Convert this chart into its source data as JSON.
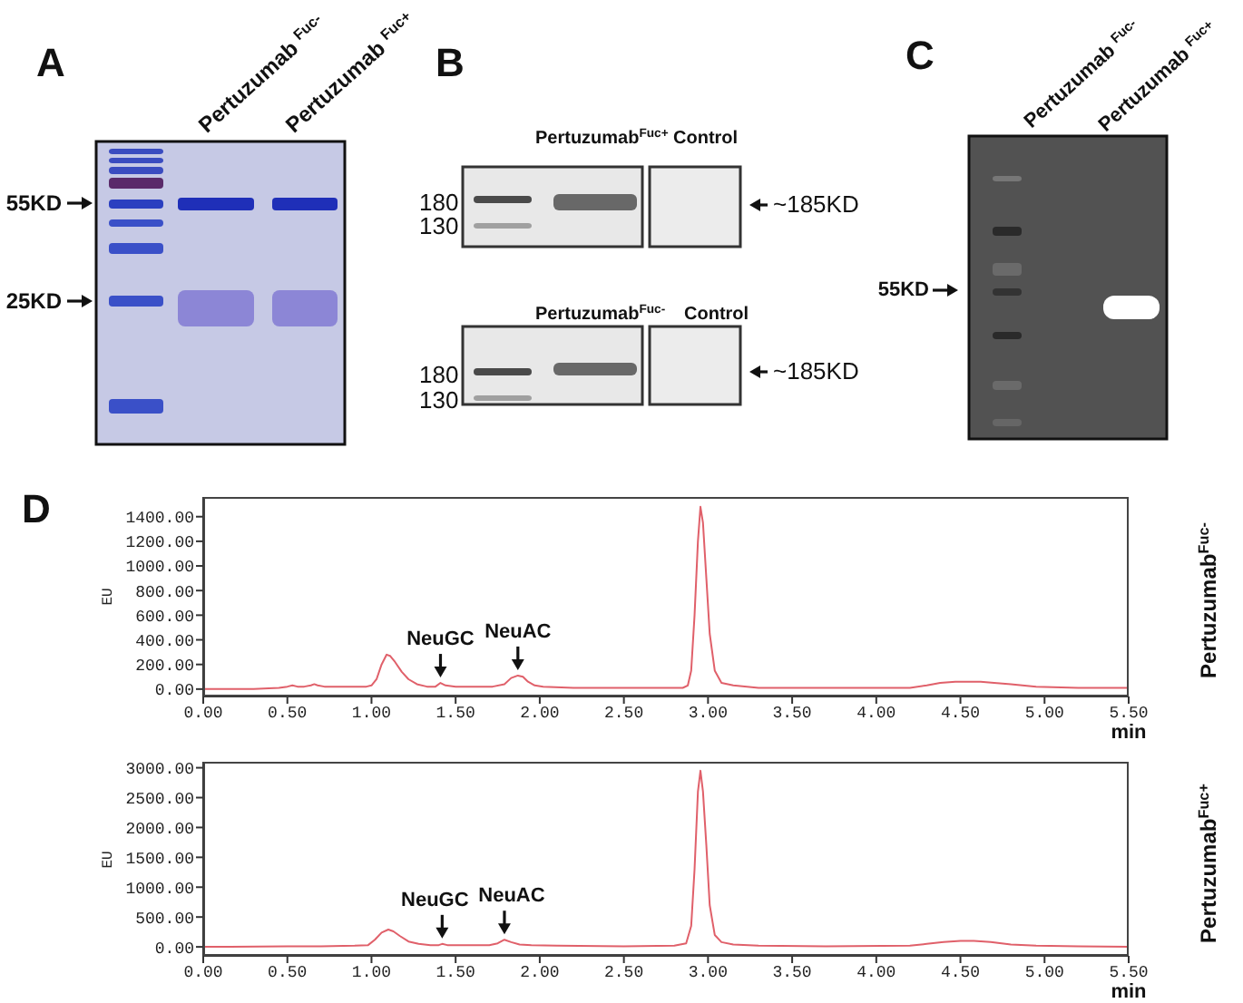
{
  "chart_data": [
    {
      "type": "other",
      "title": "A",
      "annotations": [
        "Pertuzumab $^{Fuc-}$",
        "Pertuzumab $^{Fuc+}$",
        "55KD",
        "25KD"
      ]
    },
    {
      "type": "other",
      "title": "B",
      "annotations": [
        "Pertuzumab$^{Fuc+}$",
        "Control",
        "180",
        "130",
        "~185KD",
        "Pertuzumab$^{Fuc-}$",
        "Control",
        "180",
        "130",
        "~185KD"
      ]
    },
    {
      "type": "other",
      "title": "C",
      "annotations": [
        "Pertuzumab $^{Fuc-}$",
        "Pertuzumab $^{Fuc+}$",
        "55KD"
      ]
    },
    {
      "type": "line",
      "title": "D",
      "xlabel": "min",
      "ylabel": "EU",
      "x": [
        0,
        0.3,
        0.45,
        0.5,
        0.53,
        0.56,
        0.6,
        0.64,
        0.66,
        0.68,
        0.72,
        0.8,
        0.9,
        0.97,
        1.0,
        1.03,
        1.06,
        1.09,
        1.11,
        1.14,
        1.18,
        1.22,
        1.27,
        1.33,
        1.38,
        1.41,
        1.44,
        1.5,
        1.6,
        1.72,
        1.79,
        1.83,
        1.87,
        1.9,
        1.93,
        1.97,
        2.02,
        2.2,
        2.5,
        2.75,
        2.85,
        2.88,
        2.9,
        2.92,
        2.94,
        2.955,
        2.97,
        2.99,
        3.01,
        3.04,
        3.08,
        3.15,
        3.3,
        3.6,
        4.0,
        4.2,
        4.3,
        4.38,
        4.47,
        4.55,
        4.62,
        4.7,
        4.8,
        4.95,
        5.2,
        5.5
      ],
      "series": [
        {
          "color": "#e0606a",
          "values": [
            0,
            0,
            10,
            20,
            30,
            20,
            20,
            30,
            40,
            30,
            20,
            20,
            20,
            20,
            30,
            80,
            200,
            280,
            270,
            220,
            140,
            80,
            40,
            20,
            20,
            50,
            30,
            20,
            20,
            20,
            40,
            90,
            110,
            100,
            60,
            30,
            20,
            10,
            10,
            10,
            10,
            30,
            150,
            600,
            1200,
            1480,
            1350,
            900,
            450,
            150,
            50,
            30,
            10,
            10,
            10,
            10,
            30,
            50,
            60,
            60,
            60,
            50,
            40,
            20,
            10,
            10
          ]
        }
      ],
      "xlim": [
        0,
        5.5
      ],
      "xticks": [
        {
          "value": 0,
          "label": "0.00"
        },
        {
          "value": 0.5,
          "label": "0.50"
        },
        {
          "value": 1,
          "label": "1.00"
        },
        {
          "value": 1.5,
          "label": "1.50"
        },
        {
          "value": 2,
          "label": "2.00"
        },
        {
          "value": 2.5,
          "label": "2.50"
        },
        {
          "value": 3,
          "label": "3.00"
        },
        {
          "value": 3.5,
          "label": "3.50"
        },
        {
          "value": 4,
          "label": "4.00"
        },
        {
          "value": 4.5,
          "label": "4.50"
        },
        {
          "value": 5,
          "label": "5.00"
        },
        {
          "value": 5.5,
          "label": "5.50"
        }
      ],
      "ylim": [
        -60,
        1560
      ],
      "yticks": [
        {
          "value": 0,
          "label": "0.00"
        },
        {
          "value": 200,
          "label": "200.00"
        },
        {
          "value": 400,
          "label": "400.00"
        },
        {
          "value": 600,
          "label": "600.00"
        },
        {
          "value": 800,
          "label": "800.00"
        },
        {
          "value": 1000,
          "label": "1000.00"
        },
        {
          "value": 1200,
          "label": "1200.00"
        },
        {
          "value": 1400,
          "label": "1400.00"
        }
      ],
      "annotations": [
        {
          "text": "NeuGC",
          "x": 1.41,
          "y": 50
        },
        {
          "text": "NeuAC",
          "x": 1.87,
          "y": 110
        },
        "Pertuzumab$^{Fuc-}$"
      ]
    },
    {
      "type": "line",
      "xlabel": "min",
      "ylabel": "EU",
      "x": [
        0,
        0.5,
        0.7,
        0.9,
        0.98,
        1.02,
        1.06,
        1.1,
        1.13,
        1.17,
        1.22,
        1.28,
        1.35,
        1.4,
        1.42,
        1.45,
        1.55,
        1.7,
        1.75,
        1.79,
        1.83,
        1.88,
        1.95,
        2.1,
        2.5,
        2.8,
        2.87,
        2.9,
        2.92,
        2.94,
        2.955,
        2.97,
        2.99,
        3.01,
        3.04,
        3.08,
        3.15,
        3.3,
        3.7,
        4.2,
        4.3,
        4.4,
        4.5,
        4.58,
        4.68,
        4.8,
        4.95,
        5.2,
        5.5
      ],
      "series": [
        {
          "color": "#e0606a",
          "values": [
            0,
            10,
            10,
            20,
            30,
            120,
            240,
            290,
            260,
            180,
            90,
            50,
            30,
            30,
            50,
            30,
            30,
            30,
            60,
            120,
            80,
            40,
            30,
            20,
            10,
            20,
            60,
            350,
            1300,
            2600,
            2950,
            2600,
            1700,
            700,
            200,
            80,
            40,
            20,
            10,
            20,
            50,
            80,
            100,
            100,
            80,
            40,
            20,
            10,
            0
          ]
        }
      ],
      "xlim": [
        0,
        5.5
      ],
      "xticks": [
        {
          "value": 0,
          "label": "0.00"
        },
        {
          "value": 0.5,
          "label": "0.50"
        },
        {
          "value": 1,
          "label": "1.00"
        },
        {
          "value": 1.5,
          "label": "1.50"
        },
        {
          "value": 2,
          "label": "2.00"
        },
        {
          "value": 2.5,
          "label": "2.50"
        },
        {
          "value": 3,
          "label": "3.00"
        },
        {
          "value": 3.5,
          "label": "3.50"
        },
        {
          "value": 4,
          "label": "4.00"
        },
        {
          "value": 4.5,
          "label": "4.50"
        },
        {
          "value": 5,
          "label": "5.00"
        },
        {
          "value": 5.5,
          "label": "5.50"
        }
      ],
      "ylim": [
        -150,
        3100
      ],
      "yticks": [
        {
          "value": 0,
          "label": "0.00"
        },
        {
          "value": 500,
          "label": "500.00"
        },
        {
          "value": 1000,
          "label": "1000.00"
        },
        {
          "value": 1500,
          "label": "1500.00"
        },
        {
          "value": 2000,
          "label": "2000.00"
        },
        {
          "value": 2500,
          "label": "2500.00"
        },
        {
          "value": 3000,
          "label": "3000.00"
        }
      ],
      "annotations": [
        {
          "text": "NeuGC",
          "x": 1.42,
          "y": 50
        },
        {
          "text": "NeuAC",
          "x": 1.79,
          "y": 120
        },
        "Pertuzumab$^{Fuc+}$"
      ]
    }
  ]
}
